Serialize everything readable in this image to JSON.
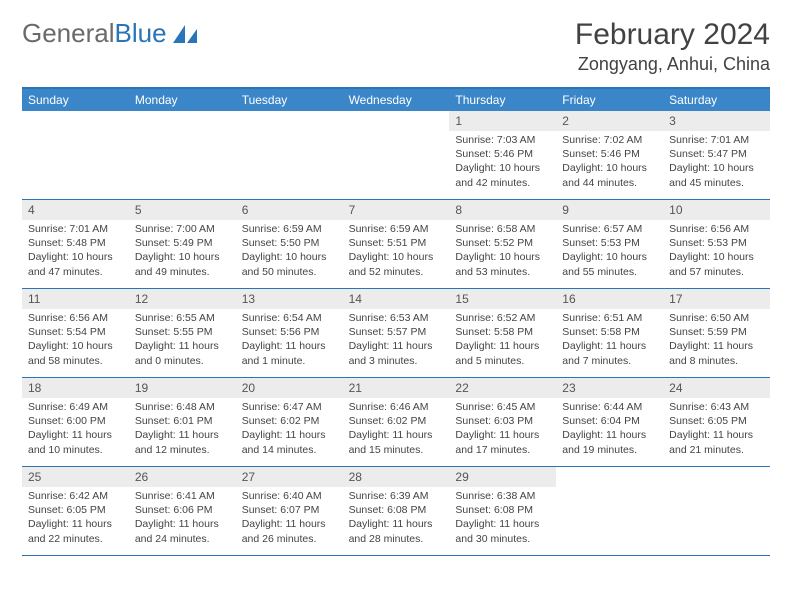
{
  "logo": {
    "text_a": "General",
    "text_b": "Blue"
  },
  "title": "February 2024",
  "location": "Zongyang, Anhui, China",
  "colors": {
    "header_bar": "#3a86c8",
    "border": "#2a74b8",
    "daynum_bg": "#ececec",
    "text": "#333333"
  },
  "weekdays": [
    "Sunday",
    "Monday",
    "Tuesday",
    "Wednesday",
    "Thursday",
    "Friday",
    "Saturday"
  ],
  "weeks": [
    [
      null,
      null,
      null,
      null,
      {
        "n": "1",
        "sr": "Sunrise: 7:03 AM",
        "ss": "Sunset: 5:46 PM",
        "dl": "Daylight: 10 hours and 42 minutes."
      },
      {
        "n": "2",
        "sr": "Sunrise: 7:02 AM",
        "ss": "Sunset: 5:46 PM",
        "dl": "Daylight: 10 hours and 44 minutes."
      },
      {
        "n": "3",
        "sr": "Sunrise: 7:01 AM",
        "ss": "Sunset: 5:47 PM",
        "dl": "Daylight: 10 hours and 45 minutes."
      }
    ],
    [
      {
        "n": "4",
        "sr": "Sunrise: 7:01 AM",
        "ss": "Sunset: 5:48 PM",
        "dl": "Daylight: 10 hours and 47 minutes."
      },
      {
        "n": "5",
        "sr": "Sunrise: 7:00 AM",
        "ss": "Sunset: 5:49 PM",
        "dl": "Daylight: 10 hours and 49 minutes."
      },
      {
        "n": "6",
        "sr": "Sunrise: 6:59 AM",
        "ss": "Sunset: 5:50 PM",
        "dl": "Daylight: 10 hours and 50 minutes."
      },
      {
        "n": "7",
        "sr": "Sunrise: 6:59 AM",
        "ss": "Sunset: 5:51 PM",
        "dl": "Daylight: 10 hours and 52 minutes."
      },
      {
        "n": "8",
        "sr": "Sunrise: 6:58 AM",
        "ss": "Sunset: 5:52 PM",
        "dl": "Daylight: 10 hours and 53 minutes."
      },
      {
        "n": "9",
        "sr": "Sunrise: 6:57 AM",
        "ss": "Sunset: 5:53 PM",
        "dl": "Daylight: 10 hours and 55 minutes."
      },
      {
        "n": "10",
        "sr": "Sunrise: 6:56 AM",
        "ss": "Sunset: 5:53 PM",
        "dl": "Daylight: 10 hours and 57 minutes."
      }
    ],
    [
      {
        "n": "11",
        "sr": "Sunrise: 6:56 AM",
        "ss": "Sunset: 5:54 PM",
        "dl": "Daylight: 10 hours and 58 minutes."
      },
      {
        "n": "12",
        "sr": "Sunrise: 6:55 AM",
        "ss": "Sunset: 5:55 PM",
        "dl": "Daylight: 11 hours and 0 minutes."
      },
      {
        "n": "13",
        "sr": "Sunrise: 6:54 AM",
        "ss": "Sunset: 5:56 PM",
        "dl": "Daylight: 11 hours and 1 minute."
      },
      {
        "n": "14",
        "sr": "Sunrise: 6:53 AM",
        "ss": "Sunset: 5:57 PM",
        "dl": "Daylight: 11 hours and 3 minutes."
      },
      {
        "n": "15",
        "sr": "Sunrise: 6:52 AM",
        "ss": "Sunset: 5:58 PM",
        "dl": "Daylight: 11 hours and 5 minutes."
      },
      {
        "n": "16",
        "sr": "Sunrise: 6:51 AM",
        "ss": "Sunset: 5:58 PM",
        "dl": "Daylight: 11 hours and 7 minutes."
      },
      {
        "n": "17",
        "sr": "Sunrise: 6:50 AM",
        "ss": "Sunset: 5:59 PM",
        "dl": "Daylight: 11 hours and 8 minutes."
      }
    ],
    [
      {
        "n": "18",
        "sr": "Sunrise: 6:49 AM",
        "ss": "Sunset: 6:00 PM",
        "dl": "Daylight: 11 hours and 10 minutes."
      },
      {
        "n": "19",
        "sr": "Sunrise: 6:48 AM",
        "ss": "Sunset: 6:01 PM",
        "dl": "Daylight: 11 hours and 12 minutes."
      },
      {
        "n": "20",
        "sr": "Sunrise: 6:47 AM",
        "ss": "Sunset: 6:02 PM",
        "dl": "Daylight: 11 hours and 14 minutes."
      },
      {
        "n": "21",
        "sr": "Sunrise: 6:46 AM",
        "ss": "Sunset: 6:02 PM",
        "dl": "Daylight: 11 hours and 15 minutes."
      },
      {
        "n": "22",
        "sr": "Sunrise: 6:45 AM",
        "ss": "Sunset: 6:03 PM",
        "dl": "Daylight: 11 hours and 17 minutes."
      },
      {
        "n": "23",
        "sr": "Sunrise: 6:44 AM",
        "ss": "Sunset: 6:04 PM",
        "dl": "Daylight: 11 hours and 19 minutes."
      },
      {
        "n": "24",
        "sr": "Sunrise: 6:43 AM",
        "ss": "Sunset: 6:05 PM",
        "dl": "Daylight: 11 hours and 21 minutes."
      }
    ],
    [
      {
        "n": "25",
        "sr": "Sunrise: 6:42 AM",
        "ss": "Sunset: 6:05 PM",
        "dl": "Daylight: 11 hours and 22 minutes."
      },
      {
        "n": "26",
        "sr": "Sunrise: 6:41 AM",
        "ss": "Sunset: 6:06 PM",
        "dl": "Daylight: 11 hours and 24 minutes."
      },
      {
        "n": "27",
        "sr": "Sunrise: 6:40 AM",
        "ss": "Sunset: 6:07 PM",
        "dl": "Daylight: 11 hours and 26 minutes."
      },
      {
        "n": "28",
        "sr": "Sunrise: 6:39 AM",
        "ss": "Sunset: 6:08 PM",
        "dl": "Daylight: 11 hours and 28 minutes."
      },
      {
        "n": "29",
        "sr": "Sunrise: 6:38 AM",
        "ss": "Sunset: 6:08 PM",
        "dl": "Daylight: 11 hours and 30 minutes."
      },
      null,
      null
    ]
  ]
}
